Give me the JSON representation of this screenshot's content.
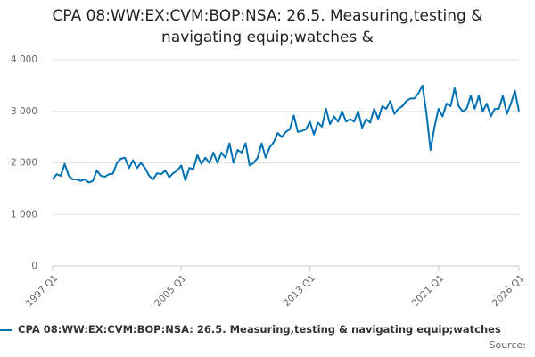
{
  "chart_data": {
    "type": "line",
    "title": "CPA 08:WW:EX:CVM:BOP:NSA: 26.5. Measuring,testing & navigating equip;watches &",
    "source": "Source:",
    "categories": [
      "1997 Q1",
      null,
      null,
      null,
      null,
      null,
      null,
      null,
      null,
      null,
      null,
      null,
      null,
      null,
      null,
      null,
      null,
      null,
      null,
      null,
      null,
      null,
      null,
      null,
      null,
      null,
      null,
      null,
      null,
      null,
      null,
      null,
      "2005 Q1",
      null,
      null,
      null,
      null,
      null,
      null,
      null,
      null,
      null,
      null,
      null,
      null,
      null,
      null,
      null,
      null,
      null,
      null,
      null,
      null,
      null,
      null,
      null,
      null,
      null,
      null,
      null,
      null,
      null,
      null,
      null,
      "2013 Q1",
      null,
      null,
      null,
      null,
      null,
      null,
      null,
      null,
      null,
      null,
      null,
      null,
      null,
      null,
      null,
      null,
      null,
      null,
      null,
      null,
      null,
      null,
      null,
      null,
      null,
      null,
      null,
      null,
      null,
      null,
      null,
      "2021 Q1",
      null,
      null,
      null,
      null,
      null,
      null,
      null,
      null,
      null,
      null,
      null,
      null,
      null,
      null,
      null,
      null,
      null,
      null,
      null,
      "2026 Q1"
    ],
    "series": [
      {
        "name": "CPA 08:WW:EX:CVM:BOP:NSA: 26.5. Measuring,testing & navigating equip;watches",
        "color": "#0072b2",
        "values": [
          1680,
          1780,
          1750,
          1980,
          1750,
          1680,
          1680,
          1650,
          1680,
          1620,
          1650,
          1850,
          1750,
          1730,
          1780,
          1790,
          2000,
          2080,
          2100,
          1900,
          2050,
          1900,
          2000,
          1900,
          1750,
          1680,
          1800,
          1780,
          1850,
          1720,
          1800,
          1850,
          1950,
          1660,
          1900,
          1880,
          2150,
          1980,
          2100,
          2000,
          2200,
          2000,
          2200,
          2100,
          2380,
          2000,
          2250,
          2200,
          2380,
          1950,
          2000,
          2100,
          2380,
          2100,
          2300,
          2400,
          2580,
          2500,
          2600,
          2650,
          2920,
          2600,
          2620,
          2650,
          2800,
          2550,
          2780,
          2700,
          3050,
          2750,
          2900,
          2800,
          3000,
          2800,
          2850,
          2800,
          3000,
          2680,
          2850,
          2780,
          3050,
          2850,
          3100,
          3050,
          3200,
          2950,
          3050,
          3100,
          3200,
          3250,
          3250,
          3350,
          3500,
          2950,
          2250,
          2700,
          3050,
          2900,
          3150,
          3100,
          3450,
          3100,
          3000,
          3050,
          3300,
          3050,
          3300,
          3000,
          3150,
          2900,
          3050,
          3050,
          3300,
          2950,
          3150,
          3400,
          3000
        ]
      }
    ],
    "ylim": [
      0,
      4000
    ],
    "yticks": [
      0,
      {
        "value": 1000,
        "label": "1 000"
      },
      {
        "value": 2000,
        "label": "2 000"
      },
      {
        "value": 3000,
        "label": "3 000"
      },
      {
        "value": 4000,
        "label": "4 000"
      }
    ],
    "grid": true
  }
}
